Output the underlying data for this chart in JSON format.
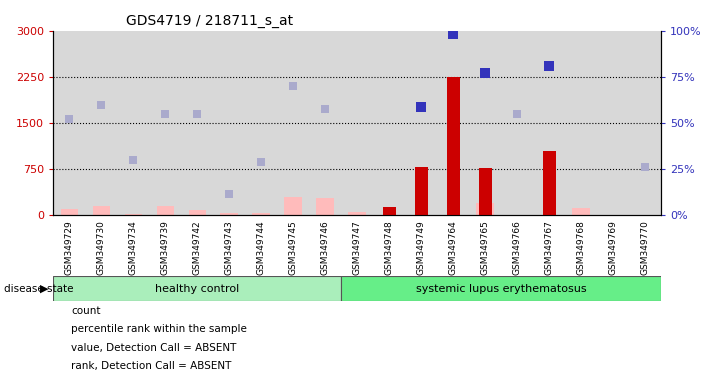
{
  "title": "GDS4719 / 218711_s_at",
  "samples": [
    "GSM349729",
    "GSM349730",
    "GSM349734",
    "GSM349739",
    "GSM349742",
    "GSM349743",
    "GSM349744",
    "GSM349745",
    "GSM349746",
    "GSM349747",
    "GSM349748",
    "GSM349749",
    "GSM349764",
    "GSM349765",
    "GSM349766",
    "GSM349767",
    "GSM349768",
    "GSM349769",
    "GSM349770"
  ],
  "n_healthy": 9,
  "n_lupus": 10,
  "count_values": [
    null,
    null,
    null,
    null,
    null,
    null,
    null,
    null,
    null,
    null,
    130,
    780,
    2250,
    760,
    null,
    1050,
    null,
    null,
    null
  ],
  "percentile_rank": [
    null,
    null,
    null,
    null,
    null,
    null,
    null,
    null,
    null,
    null,
    null,
    1760,
    2940,
    2310,
    null,
    2430,
    null,
    null,
    null
  ],
  "value_absent": [
    105,
    155,
    20,
    155,
    80,
    30,
    35,
    300,
    270,
    55,
    null,
    null,
    null,
    200,
    null,
    null,
    110,
    null,
    null
  ],
  "rank_absent": [
    1560,
    1790,
    890,
    1650,
    1640,
    350,
    870,
    2100,
    1730,
    null,
    null,
    null,
    null,
    null,
    1645,
    null,
    null,
    null,
    790
  ],
  "ylim_left": [
    0,
    3000
  ],
  "ylim_right": [
    0,
    100
  ],
  "yticks_left": [
    0,
    750,
    1500,
    2250,
    3000
  ],
  "yticks_right": [
    0,
    25,
    50,
    75,
    100
  ],
  "color_count": "#cc0000",
  "color_percentile": "#3333bb",
  "color_value_absent": "#ffbbbb",
  "color_rank_absent": "#aaaacc",
  "bg_color": "#d8d8d8",
  "healthy_color": "#aaeebb",
  "lupus_color": "#66ee88",
  "label_area_bg": "#d8d8d8",
  "grid_lines": [
    750,
    1500,
    2250
  ]
}
